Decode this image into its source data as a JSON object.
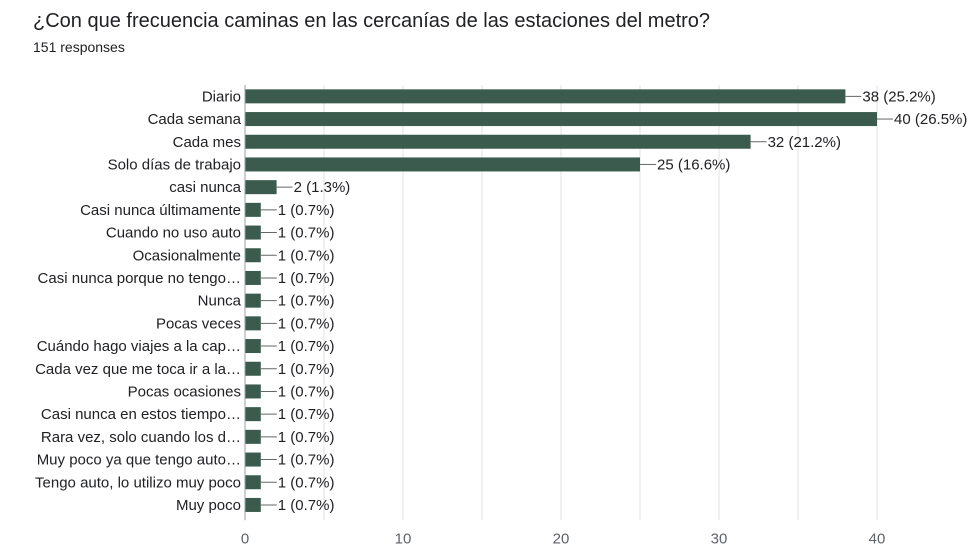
{
  "header": {
    "title": "¿Con que frecuencia caminas en las cercanías de las estaciones del metro?",
    "subtitle": "151 responses"
  },
  "colors": {
    "bar": "#3b5b4e",
    "grid": "#e0e0e0",
    "axis": "#9aa0a6",
    "leader": "#666666"
  },
  "chart_data": {
    "type": "bar",
    "orientation": "horizontal",
    "title": "¿Con que frecuencia caminas en las cercanías de las estaciones del metro?",
    "xlabel": "",
    "ylabel": "",
    "xlim": [
      0,
      40
    ],
    "x_ticks": [
      0,
      10,
      20,
      30,
      40
    ],
    "grid": true,
    "categories": [
      "Diario",
      "Cada semana",
      "Cada mes",
      "Solo días de trabajo",
      "casi nunca",
      "Casi nunca últimamente",
      "Cuando no uso auto",
      "Ocasionalmente",
      "Casi nunca porque no tengo…",
      "Nunca",
      "Pocas veces",
      "Cuándo hago viajes a la cap…",
      "Cada vez que me toca ir a la…",
      "Pocas ocasiones",
      "Casi nunca en estos tiempo…",
      "Rara vez, solo cuando los d…",
      "Muy poco ya que tengo auto…",
      "Tengo auto, lo utilizo muy poco",
      "Muy poco"
    ],
    "values": [
      38,
      40,
      32,
      25,
      2,
      1,
      1,
      1,
      1,
      1,
      1,
      1,
      1,
      1,
      1,
      1,
      1,
      1,
      1
    ],
    "value_labels": [
      "38 (25.2%)",
      "40 (26.5%)",
      "32 (21.2%)",
      "25 (16.6%)",
      "2 (1.3%)",
      "1 (0.7%)",
      "1 (0.7%)",
      "1 (0.7%)",
      "1 (0.7%)",
      "1 (0.7%)",
      "1 (0.7%)",
      "1 (0.7%)",
      "1 (0.7%)",
      "1 (0.7%)",
      "1 (0.7%)",
      "1 (0.7%)",
      "1 (0.7%)",
      "1 (0.7%)",
      "1 (0.7%)"
    ]
  }
}
